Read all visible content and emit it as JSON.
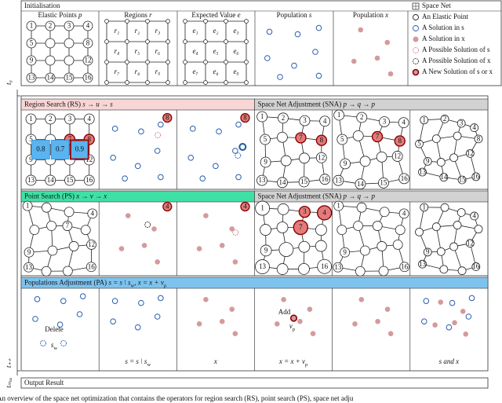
{
  "initialisation": {
    "title": "Initialisation",
    "panels": [
      {
        "title": "Elastic Points",
        "symbol": "p"
      },
      {
        "title": "Regions",
        "symbol": "r"
      },
      {
        "title": "Expected Value",
        "symbol": "e"
      },
      {
        "title": "Population",
        "symbol": "s"
      },
      {
        "title": "Population",
        "symbol": "x"
      }
    ],
    "node_labels": [
      "1",
      "2",
      "3",
      "4",
      "5",
      "8",
      "9",
      "12",
      "13",
      "14",
      "15",
      "16"
    ],
    "regions": [
      "r₁",
      "r₂",
      "r₃",
      "r₄",
      "r₅",
      "r₆",
      "r₇",
      "r₈",
      "r₉"
    ],
    "expected_values": [
      "e₁",
      "e₂",
      "e₃",
      "e₄",
      "e₅",
      "e₆",
      "e₇",
      "e₈",
      "e₉"
    ]
  },
  "legend": [
    "Space Net",
    "An Elastic Point",
    "A Solution in s",
    "A Solution in x",
    "A Possible Solution of s",
    "A Possible Solution of x",
    "A New Solution of s or x"
  ],
  "time_labels": [
    "t₀",
    "t₊₊",
    "tₘₐₓ"
  ],
  "stages": [
    {
      "title": "Region Search (RS)",
      "formula": "s → u → s"
    },
    {
      "title": "Space Net Adjustment (SNA)",
      "formula": "p → q → p"
    },
    {
      "title": "Point Search (PS)",
      "formula": "x → v → x"
    },
    {
      "title": "Space Net Adjustment (SNA)",
      "formula": "p → q → p"
    },
    {
      "title": "Populations Adjustment (PA)",
      "formula": [
        "s = s \\ s",
        "w",
        ", x = x + v",
        "p"
      ]
    }
  ],
  "region_search": {
    "values": [
      "0.8",
      "0.7",
      "0.9"
    ],
    "selected": "8"
  },
  "point_search": {
    "selected": "4"
  },
  "nets": {
    "rs": [
      "1",
      "2",
      "3",
      "4",
      "5",
      "7",
      "8",
      "9",
      "12",
      "13",
      "14",
      "15",
      "16"
    ],
    "sna1a": [
      "1",
      "2",
      "3",
      "4",
      "5",
      "7",
      "8",
      "9",
      "12",
      "13",
      "14",
      "15",
      "16"
    ],
    "sna1b": [
      "1",
      "2",
      "3",
      "4",
      "5",
      "7",
      "8",
      "9",
      "12",
      "13",
      "14",
      "15",
      "16"
    ],
    "sna1c": [
      "1",
      "2",
      "3",
      "4",
      "5",
      "8",
      "9",
      "12",
      "13",
      "14",
      "15",
      "16"
    ],
    "ps": [
      "1",
      "4",
      "7",
      "9",
      "12",
      "13",
      "16"
    ],
    "sna2a": [
      "1",
      "3",
      "4",
      "7",
      "9",
      "13",
      "16"
    ],
    "sna2b": [
      "1",
      "4",
      "9",
      "13",
      "16"
    ],
    "sna2c": [
      "1",
      "4",
      "9",
      "12",
      "13",
      "16"
    ]
  },
  "population_adjustment": {
    "delete": "Delete",
    "removed": [
      "s",
      "w"
    ],
    "add": "Add",
    "added": [
      "v",
      "p"
    ],
    "captions": [
      [
        "s = s \\ s",
        "w"
      ],
      [
        "x"
      ],
      [
        "x = x + v",
        "p"
      ],
      [
        "s and x"
      ]
    ]
  },
  "output": "Output Result",
  "caption": "An overview of the space net optimization that contains the operators for region search (RS), point search (PS), space net adju"
}
